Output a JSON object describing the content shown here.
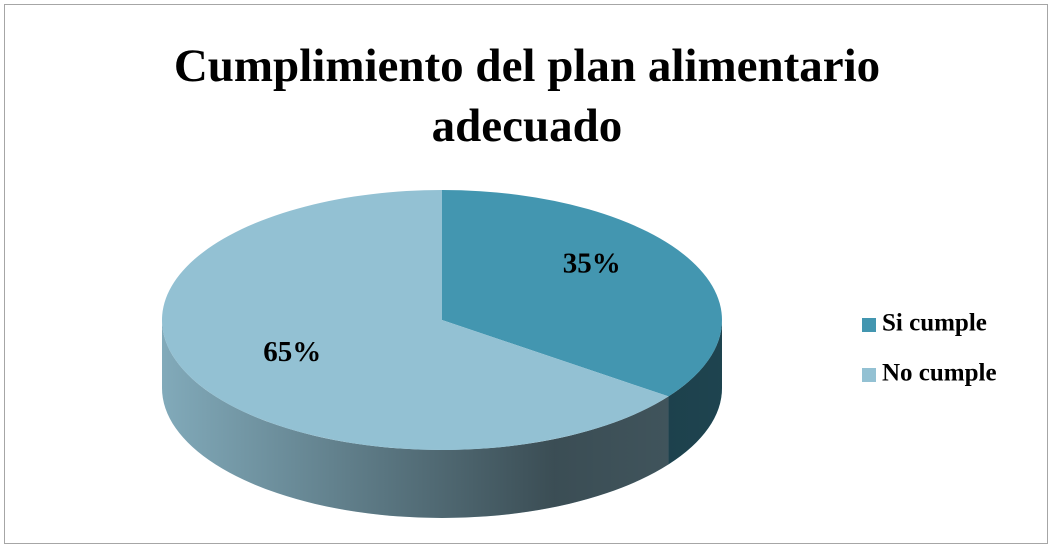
{
  "chart_data": {
    "type": "pie3d",
    "title": "Cumplimiento del plan alimentario adecuado",
    "categories": [
      "Si cumple",
      "No cumple"
    ],
    "values": [
      35,
      65
    ],
    "value_labels": [
      "35%",
      "65%"
    ],
    "colors": [
      "#4396b0",
      "#93c1d3"
    ],
    "legend": "right"
  }
}
